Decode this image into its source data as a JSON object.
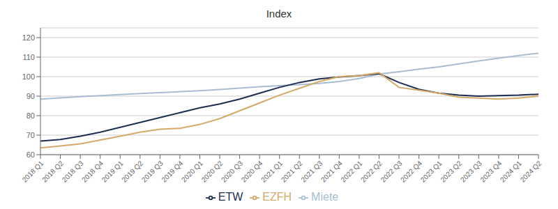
{
  "chart_data": {
    "type": "line",
    "title": "Index",
    "categories": [
      "2018 Q1",
      "2018 Q2",
      "2018 Q3",
      "2018 Q4",
      "2019 Q1",
      "2019 Q2",
      "2019 Q3",
      "2019 Q4",
      "2020 Q1",
      "2020 Q2",
      "2020 Q3",
      "2020 Q4",
      "2021 Q1",
      "2021 Q2",
      "2021 Q3",
      "2021 Q4",
      "2022 Q1",
      "2022 Q2",
      "2022 Q3",
      "2022 Q4",
      "2023 Q1",
      "2023 Q2",
      "2023 Q3",
      "2023 Q4",
      "2024 Q1",
      "2024 Q2"
    ],
    "series": [
      {
        "name": "Miete",
        "color": "#a8bdd0",
        "values": [
          88.5,
          89.1,
          89.7,
          90.3,
          90.8,
          91.3,
          91.8,
          92.3,
          92.8,
          93.4,
          94.1,
          94.8,
          95.4,
          95.9,
          96.5,
          97.5,
          99.0,
          101.3,
          102.5,
          103.8,
          105.0,
          106.5,
          108.0,
          109.5,
          110.8,
          112.0
        ]
      },
      {
        "name": "ETW",
        "color": "#1c2d4f",
        "values": [
          67.0,
          67.8,
          69.5,
          71.5,
          74.0,
          76.5,
          79.0,
          81.5,
          84.0,
          86.0,
          88.5,
          91.5,
          94.5,
          97.0,
          98.8,
          99.8,
          100.5,
          101.5,
          97.0,
          93.5,
          91.5,
          90.5,
          90.0,
          90.3,
          90.5,
          91.0
        ]
      },
      {
        "name": "EZFH",
        "color": "#d4aa6a",
        "values": [
          63.5,
          64.5,
          65.5,
          67.5,
          69.5,
          71.5,
          73.0,
          73.5,
          75.5,
          78.5,
          82.5,
          86.5,
          90.5,
          94.0,
          97.5,
          100.0,
          100.5,
          102.0,
          94.5,
          93.0,
          91.5,
          89.5,
          89.0,
          88.5,
          89.0,
          90.0
        ]
      }
    ],
    "ylim": [
      60,
      125
    ],
    "yticks": [
      60,
      70,
      80,
      90,
      100,
      110,
      120
    ],
    "grid": true,
    "legend": "bottom"
  }
}
